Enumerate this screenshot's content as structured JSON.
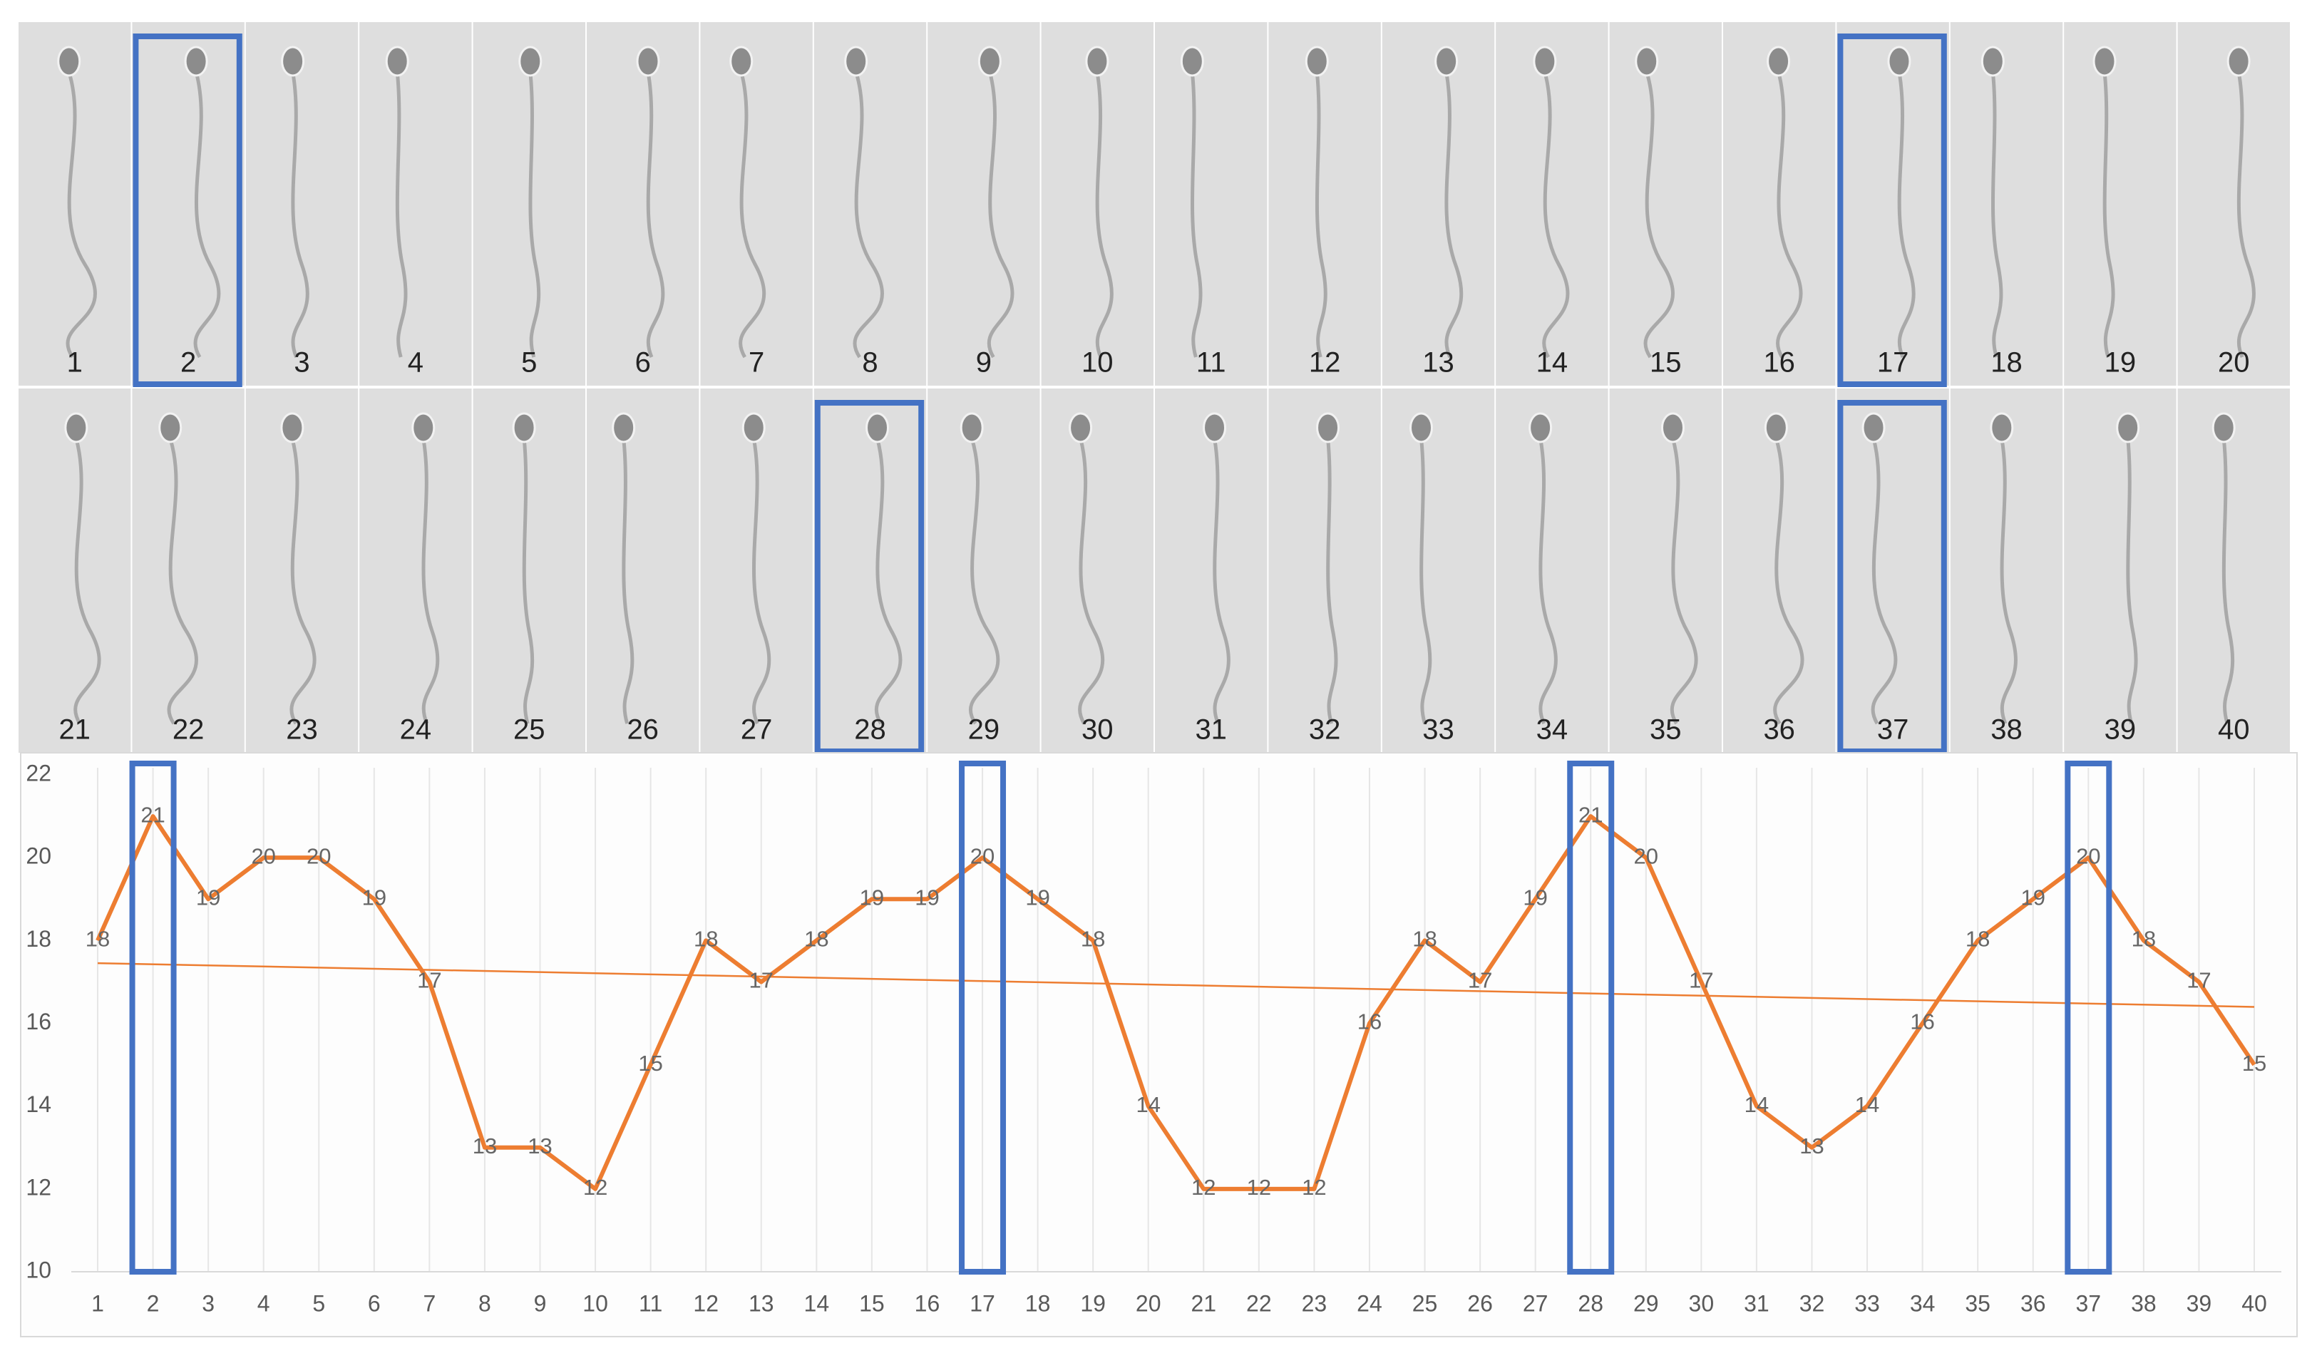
{
  "frames": {
    "labels": [
      1,
      2,
      3,
      4,
      5,
      6,
      7,
      8,
      9,
      10,
      11,
      12,
      13,
      14,
      15,
      16,
      17,
      18,
      19,
      20,
      21,
      22,
      23,
      24,
      25,
      26,
      27,
      28,
      29,
      30,
      31,
      32,
      33,
      34,
      35,
      36,
      37,
      38,
      39,
      40
    ]
  },
  "chart_data": {
    "type": "line",
    "categories": [
      1,
      2,
      3,
      4,
      5,
      6,
      7,
      8,
      9,
      10,
      11,
      12,
      13,
      14,
      15,
      16,
      17,
      18,
      19,
      20,
      21,
      22,
      23,
      24,
      25,
      26,
      27,
      28,
      29,
      30,
      31,
      32,
      33,
      34,
      35,
      36,
      37,
      38,
      39,
      40
    ],
    "values": [
      18,
      21,
      19,
      20,
      20,
      19,
      17,
      13,
      13,
      12,
      15,
      18,
      17,
      18,
      19,
      19,
      20,
      19,
      18,
      14,
      12,
      12,
      12,
      16,
      18,
      17,
      19,
      21,
      20,
      17,
      14,
      13,
      14,
      16,
      18,
      19,
      20,
      18,
      17,
      15
    ],
    "color": "#ed7d31",
    "trendline": "linear",
    "highlight": [
      2,
      17,
      28,
      37
    ],
    "highlight_color": "#4472c4",
    "ylim": [
      10,
      22
    ],
    "yticks": [
      10,
      12,
      14,
      16,
      18,
      20,
      22
    ],
    "grid": true
  }
}
